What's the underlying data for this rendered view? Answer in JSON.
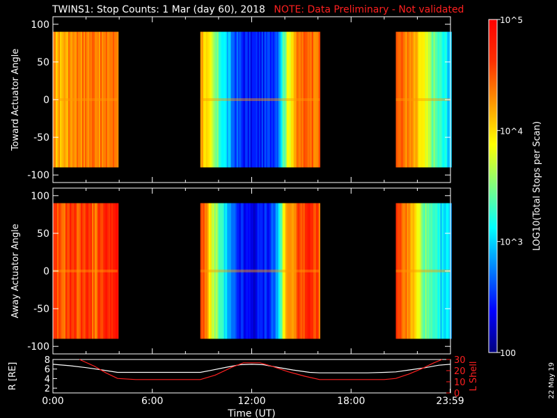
{
  "title": {
    "main": "TWINS1: Stop Counts:  1 Mar (day  60), 2018",
    "note": "NOTE: Data Preliminary - Not validated"
  },
  "stamp": "22 May 19",
  "colors": {
    "axis": "#ffffff",
    "background": "#000000",
    "note": "#ff2020",
    "lshell": "#ff2020",
    "radius": "#ffffff"
  },
  "chart_data": [
    {
      "type": "heatmap",
      "name": "toward",
      "ylabel": "Toward Actuator Angle",
      "ylim": [
        -110,
        110
      ],
      "yticks": [
        100,
        50,
        0,
        -50,
        -100
      ],
      "xlim_hours": [
        0,
        24
      ],
      "data_angle_range": [
        -90,
        90
      ],
      "intervals_hours": [
        [
          0.0,
          3.9
        ],
        [
          8.9,
          16.1
        ],
        [
          20.7,
          24.0
        ]
      ],
      "profile": [
        {
          "t": 0.0,
          "log": 4.2
        },
        {
          "t": 0.5,
          "log": 4.15
        },
        {
          "t": 1.0,
          "log": 4.3
        },
        {
          "t": 1.5,
          "log": 4.4
        },
        {
          "t": 2.0,
          "log": 4.35
        },
        {
          "t": 2.5,
          "log": 4.45
        },
        {
          "t": 3.0,
          "log": 4.3
        },
        {
          "t": 3.5,
          "log": 4.4
        },
        {
          "t": 8.9,
          "log": 4.3
        },
        {
          "t": 9.3,
          "log": 3.9
        },
        {
          "t": 9.7,
          "log": 3.5
        },
        {
          "t": 10.2,
          "log": 3.2
        },
        {
          "t": 10.8,
          "log": 2.7
        },
        {
          "t": 11.5,
          "log": 2.45
        },
        {
          "t": 12.0,
          "log": 2.4
        },
        {
          "t": 12.5,
          "log": 2.45
        },
        {
          "t": 13.0,
          "log": 2.5
        },
        {
          "t": 13.5,
          "log": 2.7
        },
        {
          "t": 14.0,
          "log": 3.6
        },
        {
          "t": 14.5,
          "log": 4.2
        },
        {
          "t": 15.0,
          "log": 4.4
        },
        {
          "t": 15.5,
          "log": 4.5
        },
        {
          "t": 16.0,
          "log": 4.4
        },
        {
          "t": 20.7,
          "log": 4.5
        },
        {
          "t": 21.2,
          "log": 4.4
        },
        {
          "t": 21.7,
          "log": 4.2
        },
        {
          "t": 22.2,
          "log": 3.9
        },
        {
          "t": 22.7,
          "log": 3.6
        },
        {
          "t": 23.2,
          "log": 3.3
        },
        {
          "t": 23.7,
          "log": 3.1
        },
        {
          "t": 24.0,
          "log": 3.0
        }
      ]
    },
    {
      "type": "heatmap",
      "name": "away",
      "ylabel": "Away Actuator Angle",
      "ylim": [
        -110,
        110
      ],
      "yticks": [
        100,
        50,
        0,
        -50,
        -100
      ],
      "xlim_hours": [
        0,
        24
      ],
      "data_angle_range": [
        -90,
        90
      ],
      "intervals_hours": [
        [
          0.0,
          3.9
        ],
        [
          8.9,
          16.1
        ],
        [
          20.7,
          24.0
        ]
      ],
      "profile": [
        {
          "t": 0.0,
          "log": 4.55
        },
        {
          "t": 0.5,
          "log": 4.4
        },
        {
          "t": 1.0,
          "log": 4.7
        },
        {
          "t": 1.5,
          "log": 4.5
        },
        {
          "t": 2.0,
          "log": 4.75
        },
        {
          "t": 2.5,
          "log": 4.4
        },
        {
          "t": 3.0,
          "log": 4.7
        },
        {
          "t": 3.5,
          "log": 4.8
        },
        {
          "t": 8.9,
          "log": 4.6
        },
        {
          "t": 9.3,
          "log": 4.2
        },
        {
          "t": 9.7,
          "log": 3.6
        },
        {
          "t": 10.2,
          "log": 3.2
        },
        {
          "t": 10.8,
          "log": 2.6
        },
        {
          "t": 11.5,
          "log": 2.35
        },
        {
          "t": 12.0,
          "log": 2.3
        },
        {
          "t": 12.5,
          "log": 2.4
        },
        {
          "t": 13.0,
          "log": 2.5
        },
        {
          "t": 13.5,
          "log": 2.8
        },
        {
          "t": 14.0,
          "log": 4.1
        },
        {
          "t": 14.5,
          "log": 4.4
        },
        {
          "t": 15.0,
          "log": 4.6
        },
        {
          "t": 15.5,
          "log": 4.7
        },
        {
          "t": 16.0,
          "log": 4.5
        },
        {
          "t": 20.7,
          "log": 4.6
        },
        {
          "t": 21.2,
          "log": 4.4
        },
        {
          "t": 21.7,
          "log": 4.1
        },
        {
          "t": 22.2,
          "log": 3.6
        },
        {
          "t": 22.7,
          "log": 3.3
        },
        {
          "t": 23.2,
          "log": 3.1
        },
        {
          "t": 23.7,
          "log": 3.0
        },
        {
          "t": 24.0,
          "log": 3.0
        }
      ]
    },
    {
      "type": "line",
      "name": "orbit",
      "xlabel": "Time (UT)",
      "xticks": [
        "0:00",
        "6:00",
        "12:00",
        "18:00",
        "23:59"
      ],
      "xtick_hours": [
        0,
        6,
        12,
        18,
        23.98
      ],
      "ylabel_left": "R [RE]",
      "ylim_left": [
        1,
        8
      ],
      "yticks_left": [
        2,
        4,
        6,
        8
      ],
      "ylabel_right": "L Shell",
      "ylim_right": [
        0,
        30
      ],
      "yticks_right": [
        0,
        10,
        20,
        30
      ],
      "series": [
        {
          "name": "R",
          "axis": "left",
          "x": [
            0,
            1,
            2,
            3,
            3.9,
            5,
            6,
            7,
            8,
            8.9,
            9.5,
            10.5,
            11.3,
            12,
            12.7,
            13.5,
            14.5,
            15.5,
            16.1,
            17,
            18,
            19,
            20,
            20.7,
            21.5,
            22.5,
            23.3,
            24
          ],
          "y": [
            7.0,
            6.7,
            6.3,
            5.8,
            5.3,
            5.3,
            5.3,
            5.3,
            5.3,
            5.3,
            5.7,
            6.4,
            6.9,
            7.0,
            6.9,
            6.4,
            5.8,
            5.3,
            5.2,
            5.2,
            5.2,
            5.2,
            5.3,
            5.4,
            5.8,
            6.3,
            6.8,
            7.0
          ]
        },
        {
          "name": "L Shell",
          "axis": "right",
          "x": [
            1.6,
            2.5,
            3.2,
            3.9,
            5,
            6,
            7,
            8,
            8.9,
            9.8,
            10.8,
            11.5,
            12,
            12.5,
            13.2,
            14.2,
            15.2,
            16.1,
            17,
            18,
            19,
            20,
            20.7,
            21.5,
            22.3,
            23.0,
            23.5
          ],
          "y": [
            30,
            24,
            18,
            13,
            12,
            12,
            12,
            12,
            12,
            16,
            23,
            27,
            27,
            27,
            24,
            19,
            15,
            12,
            12,
            12,
            12,
            12,
            13,
            17,
            22,
            27,
            30
          ]
        }
      ]
    }
  ],
  "colorbar": {
    "label": "LOG10(Total Stops per Scan)",
    "range_log": [
      2,
      5
    ],
    "ticks": [
      {
        "log": 5,
        "label": "10^5"
      },
      {
        "log": 4,
        "label": "10^4"
      },
      {
        "log": 3,
        "label": "10^3"
      },
      {
        "log": 2,
        "label": "100"
      }
    ]
  }
}
